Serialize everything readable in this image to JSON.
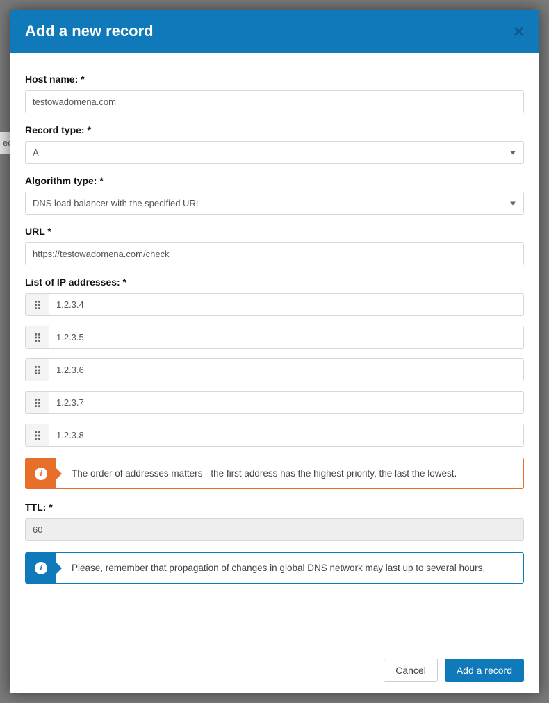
{
  "modal": {
    "title": "Add a new record",
    "close_label": "×"
  },
  "form": {
    "host_name": {
      "label": "Host name: *",
      "value": "testowadomena.com"
    },
    "record_type": {
      "label": "Record type: *",
      "selected": "A"
    },
    "algorithm_type": {
      "label": "Algorithm type: *",
      "selected": "DNS load balancer with the specified URL"
    },
    "url": {
      "label": "URL *",
      "value": "https://testowadomena.com/check"
    },
    "ip_list": {
      "label": "List of IP addresses: *",
      "items": [
        "1.2.3.4",
        "1.2.3.5",
        "1.2.3.6",
        "1.2.3.7",
        "1.2.3.8"
      ]
    },
    "ttl": {
      "label": "TTL: *",
      "value": "60"
    }
  },
  "callouts": {
    "order_info": "The order of addresses matters - the first address has the highest priority, the last the lowest.",
    "propagation_info": "Please, remember that propagation of changes in global DNS network may last up to several hours."
  },
  "footer": {
    "cancel_label": "Cancel",
    "submit_label": "Add a record"
  },
  "colors": {
    "primary": "#0F79B9",
    "warning": "#E86F2A",
    "border": "#d6d6d6",
    "text": "#333333",
    "muted_bg": "#eeeeee"
  },
  "background_hint": "ed"
}
